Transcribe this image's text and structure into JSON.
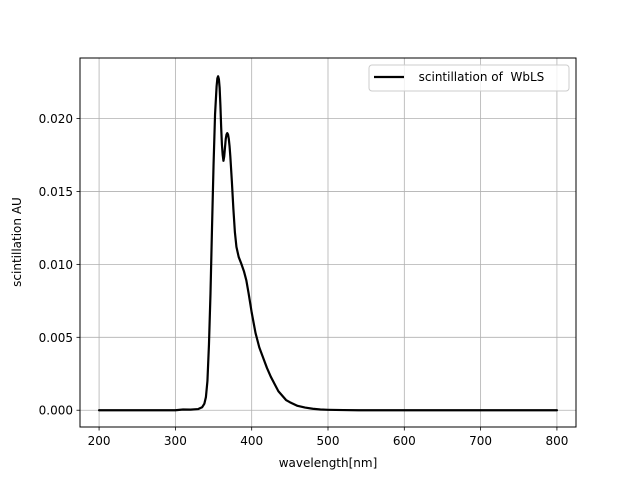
{
  "chart_data": {
    "type": "line",
    "title": "",
    "xlabel": "wavelength[nm]",
    "ylabel": "scintillation AU",
    "xlim": [
      175,
      825
    ],
    "ylim": [
      -0.00115,
      0.02415
    ],
    "xticks": [
      200,
      300,
      400,
      500,
      600,
      700,
      800
    ],
    "xtick_labels": [
      "200",
      "300",
      "400",
      "500",
      "600",
      "700",
      "800"
    ],
    "yticks": [
      0.0,
      0.005,
      0.01,
      0.015,
      0.02
    ],
    "ytick_labels": [
      "0.000",
      "0.005",
      "0.010",
      "0.015",
      "0.020"
    ],
    "grid": true,
    "legend_position": "top-right",
    "series": [
      {
        "name": "  scintillation of  WbLS",
        "color": "#000000",
        "x": [
          200,
          250,
          300,
          310,
          320,
          330,
          335,
          338,
          340,
          342,
          344,
          346,
          348,
          350,
          352,
          354,
          355,
          356,
          357,
          358,
          359,
          360,
          361,
          362,
          363,
          364,
          365,
          366,
          367,
          368,
          369,
          370,
          371,
          372,
          374,
          376,
          378,
          380,
          383,
          386,
          390,
          393,
          396,
          400,
          405,
          410,
          415,
          420,
          425,
          430,
          435,
          440,
          445,
          450,
          460,
          470,
          480,
          490,
          500,
          520,
          540,
          560,
          600,
          700,
          800
        ],
        "y": [
          0.0,
          0.0,
          0.0,
          5e-05,
          4e-05,
          8e-05,
          0.0002,
          0.00045,
          0.0009,
          0.002,
          0.0045,
          0.008,
          0.0125,
          0.0168,
          0.0203,
          0.0222,
          0.02275,
          0.0229,
          0.0227,
          0.0221,
          0.0209,
          0.0194,
          0.0182,
          0.0175,
          0.0171,
          0.0174,
          0.018,
          0.0186,
          0.0189,
          0.019,
          0.0189,
          0.0186,
          0.0181,
          0.0174,
          0.0157,
          0.0138,
          0.0122,
          0.0112,
          0.0105,
          0.0101,
          0.0095,
          0.0089,
          0.008,
          0.0067,
          0.0053,
          0.0043,
          0.0036,
          0.0029,
          0.0023,
          0.0018,
          0.0013,
          0.001,
          0.0007,
          0.00055,
          0.0003,
          0.00018,
          0.0001,
          5e-05,
          3e-05,
          1e-05,
          0.0,
          0.0,
          0.0,
          0.0,
          0.0
        ]
      }
    ]
  }
}
